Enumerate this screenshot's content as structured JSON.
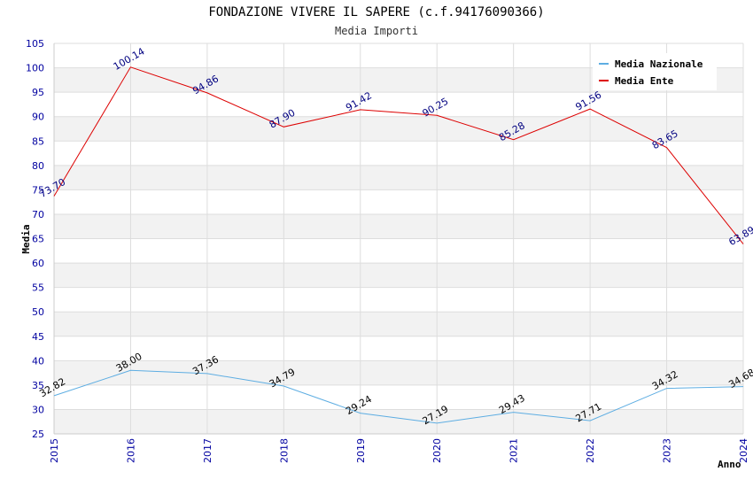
{
  "chart_data": {
    "type": "line",
    "title": "FONDAZIONE VIVERE IL SAPERE (c.f.94176090366)",
    "subtitle": "Media Importi",
    "xlabel": "Anno",
    "ylabel": "Media",
    "ylim": [
      25,
      105
    ],
    "yticks": [
      "25",
      "30",
      "35",
      "40",
      "45",
      "50",
      "55",
      "60",
      "65",
      "70",
      "75",
      "80",
      "85",
      "90",
      "95",
      "100",
      "105"
    ],
    "categories": [
      "2015",
      "2016",
      "2017",
      "2018",
      "2019",
      "2020",
      "2021",
      "2022",
      "2023",
      "2024"
    ],
    "grid": true,
    "legend_position": "top-right",
    "series": [
      {
        "name": "Media Nazionale",
        "color": "#5dade2",
        "label_color": "#000000",
        "values": [
          32.82,
          38.0,
          37.36,
          34.79,
          29.24,
          27.19,
          29.43,
          27.71,
          34.32,
          34.68
        ],
        "labels": [
          "32.82",
          "38.00",
          "37.36",
          "34.79",
          "29.24",
          "27.19",
          "29.43",
          "27.71",
          "34.32",
          "34.68"
        ]
      },
      {
        "name": "Media Ente",
        "color": "#dd0000",
        "label_color": "#000080",
        "values": [
          73.7,
          100.14,
          94.86,
          87.9,
          91.42,
          90.25,
          85.28,
          91.56,
          83.65,
          63.89
        ],
        "labels": [
          "73.70",
          "100.14",
          "94.86",
          "87.90",
          "91.42",
          "90.25",
          "85.28",
          "91.56",
          "83.65",
          "63.89"
        ]
      }
    ]
  }
}
